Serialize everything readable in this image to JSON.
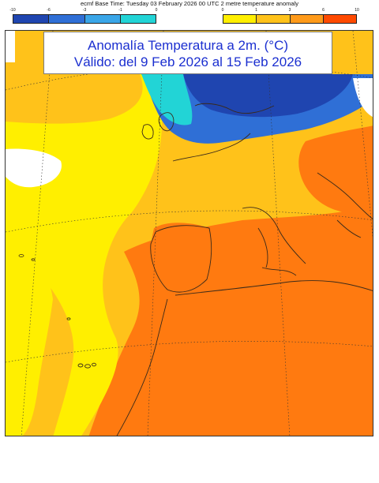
{
  "header": {
    "text": "ecmf  Base Time: Tuesday 03 February 2026 00 UTC 2 metre temperature anomaly"
  },
  "legend": {
    "negative": {
      "labels": [
        "-10",
        "-6",
        "-3",
        "-1",
        "0"
      ],
      "colors": [
        "#1f45b0",
        "#2f6fd6",
        "#3aa6e8",
        "#22d4d6"
      ]
    },
    "positive": {
      "labels": [
        "0",
        "1",
        "3",
        "6",
        "10"
      ],
      "colors": [
        "#ffef00",
        "#ffc21a",
        "#ff9a1a",
        "#ff4a00"
      ]
    }
  },
  "title": {
    "line1": "Anomalía Temperatura a 2m. (°C)",
    "line2": "Válido: del 9 Feb 2026 al 15 Feb 2026"
  },
  "map": {
    "region": "Western Europe, North Africa and the eastern Atlantic",
    "colors": {
      "strong_cold": "#1f45b0",
      "cold": "#2f6fd6",
      "mild_cold": "#3aa6e8",
      "slight_cold": "#22d4d6",
      "slight_warm": "#ffef00",
      "warm": "#ffc21a",
      "warmer": "#ff9a1a",
      "hot": "#ff7a10",
      "neutral": "#ffffff"
    }
  }
}
